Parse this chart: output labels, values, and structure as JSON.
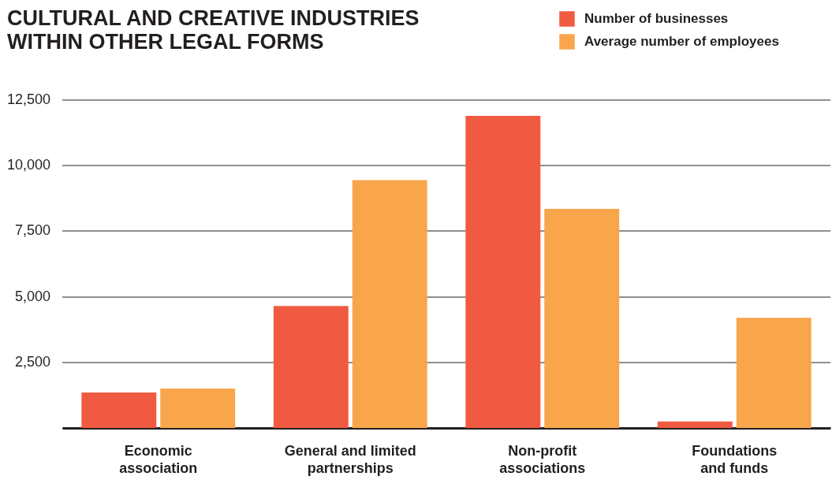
{
  "chart_data": {
    "type": "bar",
    "title": "CULTURAL AND CREATIVE INDUSTRIES WITHIN OTHER LEGAL FORMS",
    "categories": [
      "Economic association",
      "General and limited partnerships",
      "Non-profit associations",
      "Foundations and funds"
    ],
    "series": [
      {
        "name": "Number of businesses",
        "color": "#f05a40",
        "values": [
          1350,
          4650,
          11900,
          250
        ]
      },
      {
        "name": "Average number of employees",
        "color": "#f9a54b",
        "values": [
          1500,
          9450,
          8350,
          4200
        ]
      }
    ],
    "ylim": [
      0,
      12500
    ],
    "yticks": [
      {
        "value": 0,
        "label": null
      },
      {
        "value": 2500,
        "label": "2,500"
      },
      {
        "value": 5000,
        "label": "5,000"
      },
      {
        "value": 7500,
        "label": "7,500"
      },
      {
        "value": 10000,
        "label": "10,000"
      },
      {
        "value": 12500,
        "label": "12,500"
      }
    ],
    "grid": "y",
    "legend": "top right"
  }
}
